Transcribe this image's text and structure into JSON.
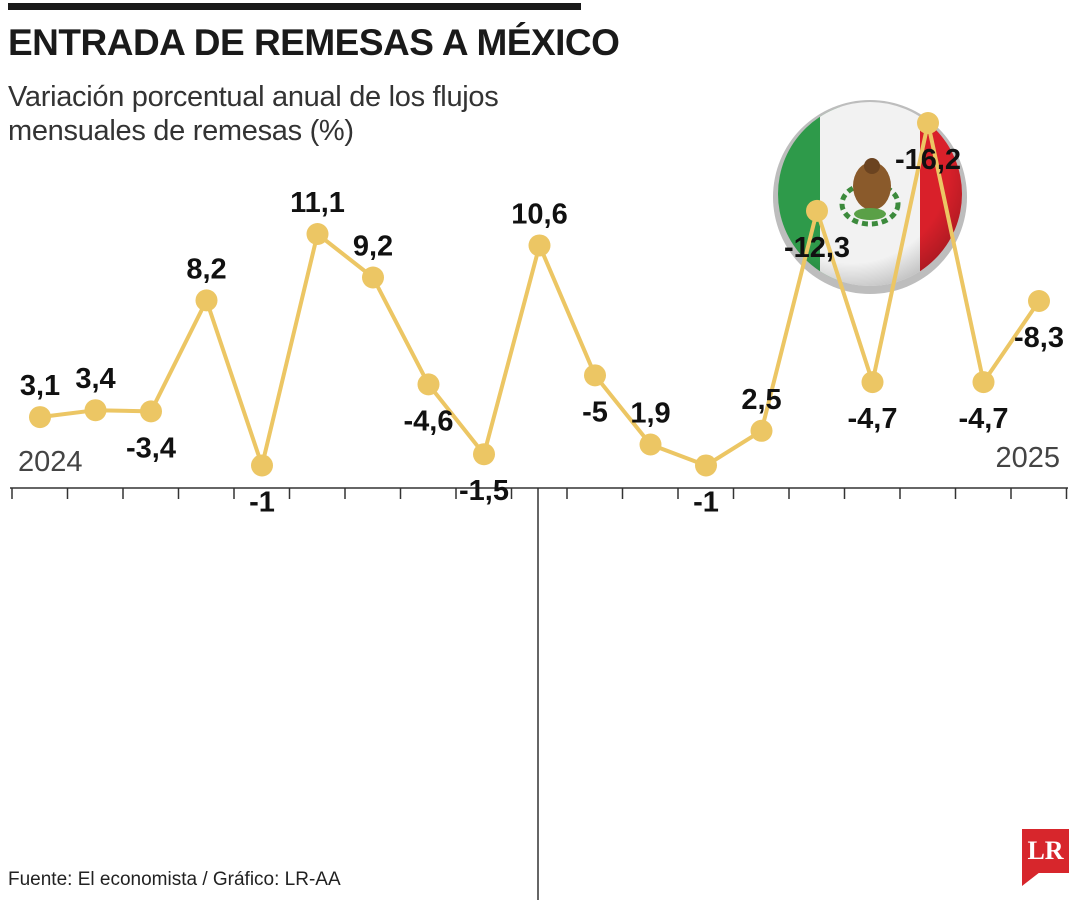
{
  "header": {
    "title": "ENTRADA DE REMESAS A MÉXICO",
    "subtitle": "Variación porcentual anual de los flujos mensuales de remesas (%)"
  },
  "footer": {
    "source": "Fuente: El economista / Gráfico: LR-AA",
    "logo_text": "LR"
  },
  "colors": {
    "line": "#ecc664",
    "marker": "#ecc664",
    "axis": "#333333",
    "brand": "#d7262c",
    "flag_green": "#2e9a4a",
    "flag_white": "#f2f2f2",
    "flag_red": "#d9202a"
  },
  "decor": {
    "flag": "mexico-flag-icon"
  },
  "chart_data": {
    "type": "line",
    "year_labels": [
      "2024",
      "2025"
    ],
    "values": [
      3.1,
      3.4,
      -3.4,
      8.2,
      -1,
      11.1,
      9.2,
      -4.6,
      -1.5,
      10.6,
      -5,
      1.9,
      -1,
      2.5,
      -12.3,
      -4.7,
      -16.2,
      -4.7,
      -8.3
    ],
    "labels": [
      "3,1",
      "3,4",
      "-3,4",
      "8,2",
      "-1",
      "11,1",
      "9,2",
      "-4,6",
      "-1,5",
      "10,6",
      "-5",
      "1,9",
      "-1",
      "2,5",
      "-12,3",
      "-4,7",
      "-16,2",
      "-4,7",
      "-8,3"
    ],
    "ylim": [
      -16.2,
      11.1
    ],
    "grid": false,
    "legend": "none"
  }
}
